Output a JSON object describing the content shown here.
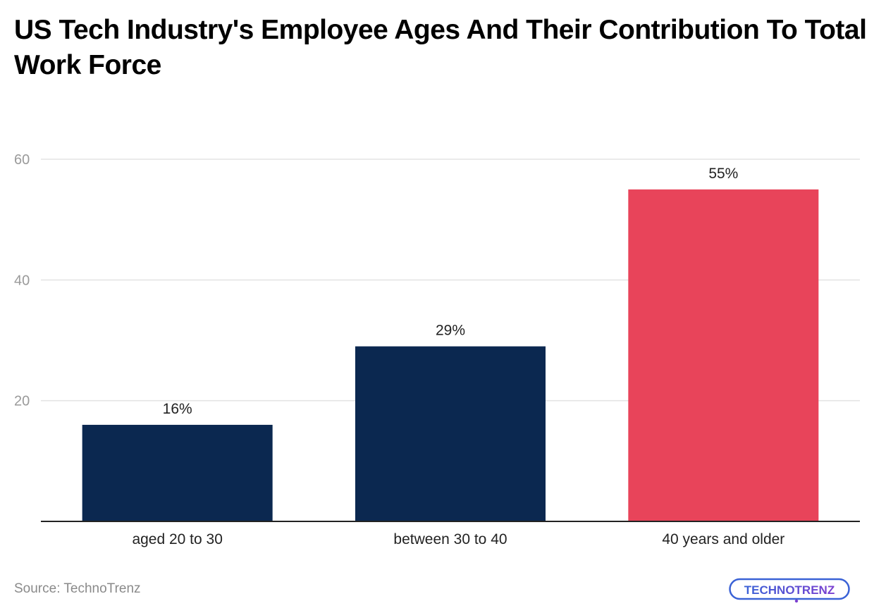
{
  "title": "US Tech Industry's Employee Ages And Their Contribution To Total Work Force",
  "source": "Source: TechnoTrenz",
  "logo": {
    "text": "TECHNOTRENZ"
  },
  "colors": {
    "bar_default": "#0b2850",
    "bar_highlight": "#e8445a",
    "grid": "#e3e3e3",
    "axis": "#222222",
    "tick_label": "#9a9a9a",
    "logo_blue": "#3a62d6",
    "logo_purple": "#7b3fd0"
  },
  "chart_data": {
    "type": "bar",
    "title": "US Tech Industry's Employee Ages And Their Contribution To Total Work Force",
    "xlabel": "",
    "ylabel": "",
    "categories": [
      "aged 20 to 30",
      "between 30 to 40",
      "40 years and older"
    ],
    "values": [
      16,
      29,
      55
    ],
    "labels": [
      "16%",
      "29%",
      "55%"
    ],
    "highlight_index": 2,
    "ylim": [
      0,
      60
    ],
    "yticks": [
      20,
      40,
      60
    ],
    "grid": true,
    "legend": "none"
  }
}
